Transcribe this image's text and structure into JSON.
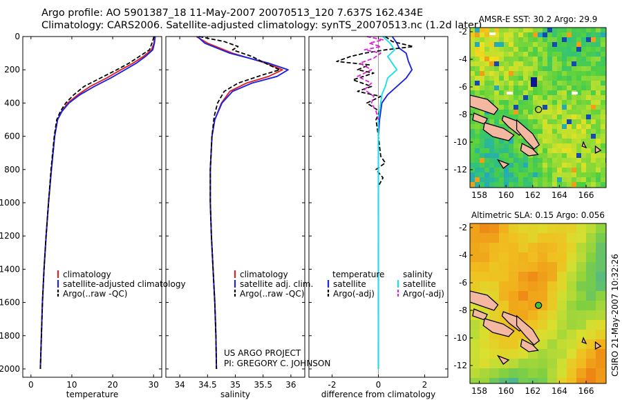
{
  "header": {
    "line1": "Argo profile: AO 5901387_18 11-May-2007 20070513_120 7.637S 162.434E",
    "line2": "Climatology: CARS2006. Satellite-adjusted climatology: synTS_20070513.nc (1.2d later)"
  },
  "footer_credit": "CSIRO 21-May-2007 10:32:26",
  "project_note": [
    "US ARGO PROJECT",
    "PI: GREGORY C. JOHNSON"
  ],
  "colors": {
    "climatology": "#e02020",
    "satellite": "#1a22e6",
    "argo": "#000000",
    "satellite_salinity_diff": "#18e0e8",
    "argo_salinity_diff": "#e020d8"
  },
  "chart_data": [
    {
      "type": "line",
      "xlabel": "temperature",
      "xlim": [
        -2,
        32
      ],
      "xticks": [
        0,
        10,
        20,
        30
      ],
      "ylim": [
        2050,
        0
      ],
      "yticks": [
        0,
        200,
        400,
        600,
        800,
        1000,
        1200,
        1400,
        1600,
        1800,
        2000
      ],
      "legend": {
        "placement": "lower-center",
        "entries": [
          "climatology",
          "satellite-adjusted climatology",
          "Argo(..raw -QC)"
        ]
      },
      "series": [
        {
          "name": "climatology",
          "color": "#e02020",
          "points": [
            [
              30.3,
              0
            ],
            [
              30.1,
              40
            ],
            [
              29.5,
              80
            ],
            [
              27.5,
              120
            ],
            [
              25,
              160
            ],
            [
              22,
              200
            ],
            [
              18.5,
              250
            ],
            [
              14.5,
              300
            ],
            [
              11.5,
              350
            ],
            [
              9,
              400
            ],
            [
              7.5,
              450
            ],
            [
              6.5,
              500
            ],
            [
              5.8,
              600
            ],
            [
              5,
              800
            ],
            [
              4.3,
              1000
            ],
            [
              3.7,
              1200
            ],
            [
              3.2,
              1400
            ],
            [
              2.8,
              1600
            ],
            [
              2.55,
              1800
            ],
            [
              2.3,
              2000
            ]
          ]
        },
        {
          "name": "satellite-adjusted climatology",
          "color": "#1a22e6",
          "points": [
            [
              30.4,
              0
            ],
            [
              30.2,
              40
            ],
            [
              29.8,
              80
            ],
            [
              28,
              120
            ],
            [
              25.8,
              160
            ],
            [
              23,
              200
            ],
            [
              19.5,
              250
            ],
            [
              15.5,
              300
            ],
            [
              12,
              350
            ],
            [
              9.3,
              400
            ],
            [
              7.6,
              450
            ],
            [
              6.5,
              500
            ],
            [
              5.8,
              600
            ],
            [
              5,
              800
            ],
            [
              4.3,
              1000
            ],
            [
              3.7,
              1200
            ],
            [
              3.2,
              1400
            ],
            [
              2.8,
              1600
            ],
            [
              2.55,
              1800
            ],
            [
              2.3,
              2000
            ]
          ]
        },
        {
          "name": "Argo(..raw -QC)",
          "color": "#000000",
          "dashed": true,
          "points": [
            [
              30.1,
              0
            ],
            [
              29.6,
              40
            ],
            [
              29,
              80
            ],
            [
              26.5,
              120
            ],
            [
              24,
              160
            ],
            [
              21,
              200
            ],
            [
              17,
              250
            ],
            [
              13,
              300
            ],
            [
              10.5,
              350
            ],
            [
              8.5,
              400
            ],
            [
              7.2,
              450
            ],
            [
              6.3,
              500
            ],
            [
              5.7,
              600
            ],
            [
              4.9,
              800
            ],
            [
              4.3,
              1000
            ],
            [
              3.7,
              1200
            ],
            [
              3.2,
              1400
            ],
            [
              2.8,
              1600
            ],
            [
              2.55,
              1800
            ],
            [
              2.3,
              2000
            ]
          ]
        }
      ]
    },
    {
      "type": "line",
      "xlabel": "salinity",
      "xlim": [
        33.75,
        36.25
      ],
      "xticks": [
        34,
        34.5,
        35,
        35.5,
        36
      ],
      "ylim": [
        2050,
        0
      ],
      "legend": {
        "placement": "lower-right",
        "entries": [
          "climatology",
          "satellite adj. clim.",
          "Argo(..raw -QC)"
        ]
      },
      "series": [
        {
          "name": "climatology",
          "color": "#e02020",
          "points": [
            [
              34.3,
              0
            ],
            [
              34.5,
              40
            ],
            [
              34.95,
              100
            ],
            [
              35.55,
              160
            ],
            [
              35.85,
              200
            ],
            [
              35.6,
              240
            ],
            [
              35.2,
              280
            ],
            [
              34.9,
              330
            ],
            [
              34.75,
              400
            ],
            [
              34.63,
              500
            ],
            [
              34.58,
              600
            ],
            [
              34.55,
              800
            ],
            [
              34.55,
              1000
            ],
            [
              34.57,
              1200
            ],
            [
              34.6,
              1400
            ],
            [
              34.63,
              1600
            ],
            [
              34.65,
              1800
            ],
            [
              34.66,
              2000
            ]
          ]
        },
        {
          "name": "satellite adj. clim.",
          "color": "#1a22e6",
          "points": [
            [
              34.32,
              0
            ],
            [
              34.45,
              40
            ],
            [
              34.9,
              100
            ],
            [
              35.6,
              160
            ],
            [
              35.95,
              200
            ],
            [
              35.75,
              240
            ],
            [
              35.3,
              280
            ],
            [
              34.95,
              330
            ],
            [
              34.76,
              400
            ],
            [
              34.63,
              500
            ],
            [
              34.58,
              600
            ],
            [
              34.55,
              800
            ],
            [
              34.55,
              1000
            ],
            [
              34.57,
              1200
            ],
            [
              34.6,
              1400
            ],
            [
              34.63,
              1600
            ],
            [
              34.65,
              1800
            ],
            [
              34.66,
              2000
            ]
          ]
        },
        {
          "name": "Argo(..raw -QC)",
          "color": "#000000",
          "dashed": true,
          "points": [
            [
              34.35,
              0
            ],
            [
              34.8,
              30
            ],
            [
              35.05,
              60
            ],
            [
              34.95,
              80
            ],
            [
              35.3,
              120
            ],
            [
              35.6,
              170
            ],
            [
              35.8,
              200
            ],
            [
              35.5,
              230
            ],
            [
              35.05,
              280
            ],
            [
              34.8,
              330
            ],
            [
              34.68,
              400
            ],
            [
              34.62,
              480
            ],
            [
              34.58,
              600
            ],
            [
              34.55,
              800
            ],
            [
              34.55,
              1000
            ],
            [
              34.57,
              1200
            ],
            [
              34.6,
              1400
            ],
            [
              34.63,
              1600
            ],
            [
              34.65,
              1800
            ],
            [
              34.66,
              2000
            ]
          ]
        }
      ]
    },
    {
      "type": "line",
      "xlabel": "difference from climatology",
      "xlim": [
        -3,
        3
      ],
      "xticks": [
        -2,
        0,
        2
      ],
      "ylim": [
        2050,
        0
      ],
      "legend": {
        "placement": "lower-center",
        "headings": [
          "temperature",
          "salinity"
        ],
        "entries": [
          "satellite",
          "Argo(-adj)",
          "satellite",
          "Argo(-adj)"
        ]
      },
      "series": [
        {
          "name": "temperature satellite",
          "color": "#1a22e6",
          "points": [
            [
              0.6,
              0
            ],
            [
              0.8,
              40
            ],
            [
              0.9,
              70
            ],
            [
              1.2,
              100
            ],
            [
              1.3,
              150
            ],
            [
              1.45,
              200
            ],
            [
              1.2,
              250
            ],
            [
              0.8,
              300
            ],
            [
              0.4,
              350
            ],
            [
              0.15,
              400
            ],
            [
              0.05,
              500
            ],
            [
              0,
              600
            ],
            [
              0,
              1000
            ],
            [
              0,
              2000
            ]
          ]
        },
        {
          "name": "temperature Argo(-adj)",
          "color": "#000000",
          "dashed": true,
          "points": [
            [
              0.3,
              0
            ],
            [
              0.6,
              30
            ],
            [
              1.5,
              60
            ],
            [
              0.3,
              80
            ],
            [
              -0.6,
              100
            ],
            [
              -1.2,
              120
            ],
            [
              -1.8,
              150
            ],
            [
              -0.4,
              170
            ],
            [
              -0.9,
              200
            ],
            [
              -0.2,
              220
            ],
            [
              -1.1,
              260
            ],
            [
              -0.3,
              300
            ],
            [
              -0.9,
              330
            ],
            [
              0.1,
              360
            ],
            [
              -0.5,
              400
            ],
            [
              0.05,
              450
            ],
            [
              -0.1,
              500
            ],
            [
              0,
              600
            ],
            [
              0.1,
              720
            ],
            [
              0.3,
              760
            ],
            [
              -0.1,
              800
            ],
            [
              0.2,
              850
            ],
            [
              0,
              900
            ],
            [
              0,
              1000
            ],
            [
              0,
              2000
            ]
          ]
        },
        {
          "name": "salinity satellite",
          "color": "#18e0e8",
          "points": [
            [
              0.2,
              0
            ],
            [
              0.5,
              40
            ],
            [
              0.7,
              80
            ],
            [
              0.4,
              120
            ],
            [
              0.6,
              160
            ],
            [
              0.8,
              200
            ],
            [
              0.4,
              250
            ],
            [
              0.3,
              300
            ],
            [
              0.15,
              350
            ],
            [
              0.1,
              400
            ],
            [
              0,
              500
            ],
            [
              0,
              2000
            ]
          ]
        },
        {
          "name": "salinity Argo(-adj)",
          "color": "#e020d8",
          "dashed": true,
          "points": [
            [
              -0.5,
              0
            ],
            [
              0.2,
              20
            ],
            [
              -0.4,
              40
            ],
            [
              0.1,
              60
            ],
            [
              -0.6,
              80
            ],
            [
              0.1,
              100
            ],
            [
              -0.2,
              130
            ],
            [
              -0.8,
              160
            ],
            [
              -0.3,
              200
            ],
            [
              -0.9,
              240
            ],
            [
              -0.3,
              280
            ],
            [
              -0.6,
              320
            ],
            [
              -0.2,
              360
            ],
            [
              -0.3,
              400
            ],
            [
              -0.1,
              450
            ],
            [
              0,
              500
            ]
          ]
        }
      ]
    },
    {
      "type": "heatmap",
      "title": "AMSR-E SST: 30.2 Argo: 29.9",
      "xlim": [
        157.3,
        167.5
      ],
      "xticks": [
        158,
        160,
        162,
        164,
        166
      ],
      "ylim": [
        -13.3,
        -1.7
      ],
      "yticks": [
        -2,
        -4,
        -6,
        -8,
        -10,
        -12
      ],
      "float_position": [
        162.434,
        -7.637
      ]
    },
    {
      "type": "heatmap",
      "title": "Altimetric SLA: 0.15 Argo: 0.056",
      "xlim": [
        157.3,
        167.5
      ],
      "xticks": [
        158,
        160,
        162,
        164,
        166
      ],
      "ylim": [
        -13.3,
        -1.7
      ],
      "yticks": [
        -2,
        -4,
        -6,
        -8,
        -10,
        -12
      ],
      "float_position": [
        162.434,
        -7.637
      ]
    }
  ]
}
